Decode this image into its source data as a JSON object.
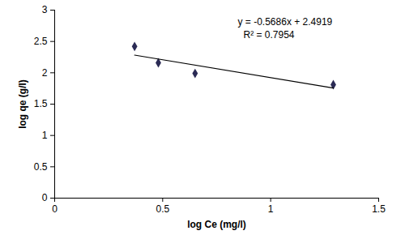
{
  "chart_data": {
    "type": "scatter",
    "xlabel": "log Ce (mg/l)",
    "ylabel": "log qe (g/l)",
    "xlim": [
      0,
      1.5
    ],
    "xticks": [
      0,
      0.5,
      1,
      1.5
    ],
    "ylim": [
      0,
      3
    ],
    "yticks": [
      0,
      0.5,
      1,
      1.5,
      2,
      2.5,
      3
    ],
    "grid": false,
    "series": [
      {
        "type": "scatter",
        "marker": "diamond",
        "color": "#2b2b55",
        "x": [
          0.37,
          0.48,
          0.65,
          1.29
        ],
        "values": [
          2.42,
          2.16,
          1.99,
          1.81
        ]
      },
      {
        "type": "line",
        "line_style": "solid",
        "color": "#000000",
        "x": [
          0.37,
          1.29
        ],
        "values": [
          2.282,
          1.758
        ]
      }
    ],
    "annotations": [
      "y = -0.5686x + 2.4919",
      "R² = 0.7954"
    ]
  }
}
